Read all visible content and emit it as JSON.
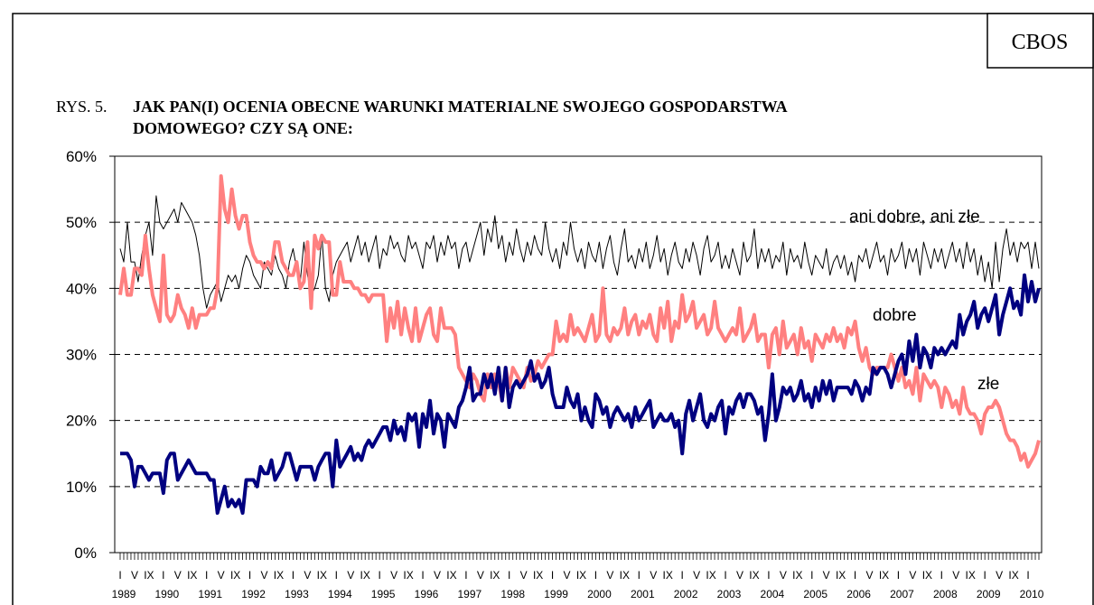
{
  "chart_data": {
    "type": "line",
    "source": "CBOS",
    "figure_label": "RYS. 5.",
    "title": [
      "JAK PAN(I) OCENIA OBECNE WARUNKI MATERIALNE SWOJEGO GOSPODARSTWA",
      "DOMOWEGO? CZY SĄ ONE:"
    ],
    "years": [
      "1989",
      "1990",
      "1991",
      "1992",
      "1993",
      "1994",
      "1995",
      "1996",
      "1997",
      "1998",
      "1999",
      "2000",
      "2001",
      "2002",
      "2003",
      "2004",
      "2005",
      "2006",
      "2007",
      "2008",
      "2009",
      "2010"
    ],
    "categories": [
      "I",
      null,
      null,
      null,
      "V",
      null,
      null,
      null,
      "IX",
      null,
      null,
      null,
      "I",
      null,
      null,
      null,
      "V",
      null,
      null,
      null,
      "IX",
      null,
      null,
      null,
      "I",
      null,
      null,
      null,
      "V",
      null,
      null,
      null,
      "IX",
      null,
      null,
      null,
      "I",
      null,
      null,
      null,
      "V",
      null,
      null,
      null,
      "IX",
      null,
      null,
      null,
      "I",
      null,
      null,
      null,
      "V",
      null,
      null,
      null,
      "IX",
      null,
      null,
      null,
      "I",
      null,
      null,
      null,
      "V",
      null,
      null,
      null,
      "IX",
      null,
      null,
      null,
      "I",
      null,
      null,
      null,
      "V",
      null,
      null,
      null,
      "IX",
      null,
      null,
      null,
      "I",
      null,
      null,
      null,
      "V",
      null,
      null,
      null,
      "IX",
      null,
      null,
      null,
      "I",
      null,
      null,
      null,
      "V",
      null,
      null,
      null,
      "IX",
      null,
      null,
      null,
      "I",
      null,
      null,
      null,
      "V",
      null,
      null,
      null,
      "IX",
      null,
      null,
      null,
      "I",
      null,
      null,
      null,
      "V",
      null,
      null,
      null,
      "IX",
      null,
      null,
      null,
      "I",
      null,
      null,
      null,
      "V",
      null,
      null,
      null,
      "IX",
      null,
      null,
      null,
      "I",
      null,
      null,
      null,
      "V",
      null,
      null,
      null,
      "IX",
      null,
      null,
      null,
      "I",
      null,
      null,
      null,
      "V",
      null,
      null,
      null,
      "IX",
      null,
      null,
      null,
      "I",
      null,
      null,
      null,
      "V",
      null,
      null,
      null,
      "IX",
      null,
      null,
      null,
      "I",
      null,
      null,
      null,
      "V",
      null,
      null,
      null,
      "IX",
      null,
      null,
      null,
      "I",
      null,
      null,
      null,
      "V",
      null,
      null,
      null,
      "IX",
      null,
      null,
      null,
      "I",
      null,
      null,
      null,
      "V",
      null,
      null,
      null,
      "IX",
      null,
      null,
      null,
      "I",
      null,
      null,
      null,
      "V",
      null,
      null,
      null,
      "IX",
      null,
      null,
      null,
      "I",
      null,
      null,
      null,
      "V",
      null,
      null,
      null,
      "IX",
      null,
      null,
      null,
      "I",
      null,
      null,
      null,
      "V",
      null,
      null,
      null,
      "IX",
      null,
      null,
      null,
      "I",
      null,
      null,
      null
    ],
    "series": [
      {
        "name": "dobre",
        "color": "#000080",
        "width": 4,
        "values": [
          15,
          15,
          15,
          14,
          10,
          13,
          13,
          12,
          11,
          12,
          12,
          12,
          9,
          14,
          15,
          15,
          11,
          12,
          13,
          14,
          13,
          12,
          12,
          12,
          12,
          11,
          11,
          6,
          8,
          10,
          7,
          8,
          7,
          8,
          6,
          11,
          11,
          11,
          10,
          13,
          12,
          12,
          14,
          11,
          12,
          13,
          15,
          15,
          13,
          11,
          13,
          13,
          13,
          13,
          11,
          13,
          14,
          15,
          15,
          10,
          17,
          13,
          14,
          15,
          16,
          14,
          15,
          14,
          16,
          17,
          16,
          17,
          18,
          19,
          19,
          17,
          20,
          18,
          19,
          17,
          21,
          20,
          21,
          16,
          21,
          19,
          23,
          18,
          21,
          20,
          16,
          21,
          20,
          19,
          22,
          23,
          25,
          28,
          23,
          24,
          24,
          27,
          25,
          27,
          24,
          28,
          23,
          28,
          22,
          25,
          26,
          25,
          26,
          27,
          29,
          26,
          27,
          25,
          26,
          28,
          24,
          22,
          22,
          22,
          25,
          23,
          22,
          24,
          20,
          22,
          20,
          19,
          24,
          23,
          21,
          22,
          19,
          21,
          22,
          21,
          20,
          21,
          19,
          22,
          20,
          21,
          22,
          23,
          19,
          20,
          21,
          20,
          20,
          21,
          19,
          20,
          15,
          21,
          23,
          20,
          22,
          24,
          20,
          19,
          21,
          20,
          22,
          23,
          18,
          22,
          21,
          23,
          24,
          22,
          24,
          24,
          23,
          21,
          22,
          17,
          21,
          27,
          20,
          22,
          25,
          24,
          25,
          23,
          24,
          26,
          23,
          24,
          22,
          25,
          23,
          26,
          24,
          26,
          23,
          25,
          25,
          25,
          25,
          24,
          26,
          25,
          23,
          25,
          24,
          28,
          27,
          28,
          28,
          27,
          25,
          27,
          29,
          30,
          27,
          32,
          29,
          33,
          28,
          31,
          30,
          28,
          31,
          30,
          31,
          30,
          31,
          32,
          31,
          36,
          33,
          35,
          36,
          38,
          34,
          36,
          37,
          35,
          37,
          39,
          33,
          36,
          38,
          40,
          37,
          38,
          36,
          42,
          38,
          41,
          38,
          40
        ]
      },
      {
        "name": "złe",
        "color": "#ff8080",
        "width": 4,
        "values": [
          39,
          43,
          39,
          39,
          43,
          43,
          42,
          48,
          43,
          39,
          37,
          35,
          45,
          36,
          35,
          36,
          39,
          37,
          36,
          34,
          37,
          34,
          36,
          36,
          36,
          37,
          37,
          40,
          57,
          52,
          50,
          55,
          51,
          49,
          51,
          51,
          47,
          45,
          44,
          44,
          43,
          44,
          43,
          47,
          47,
          44,
          43,
          42,
          42,
          44,
          40,
          41,
          47,
          37,
          48,
          46,
          48,
          47,
          47,
          39,
          39,
          44,
          41,
          41,
          41,
          40,
          40,
          39,
          39,
          38,
          39,
          39,
          39,
          39,
          32,
          37,
          34,
          38,
          33,
          37,
          34,
          32,
          37,
          32,
          34,
          36,
          37,
          33,
          32,
          37,
          34,
          34,
          34,
          33,
          28,
          27,
          26,
          25,
          27,
          26,
          24,
          23,
          27,
          25,
          27,
          26,
          23,
          28,
          25,
          28,
          27,
          26,
          25,
          28,
          26,
          27,
          29,
          28,
          29,
          30,
          30,
          35,
          32,
          33,
          32,
          36,
          33,
          34,
          33,
          32,
          34,
          36,
          32,
          33,
          40,
          33,
          32,
          34,
          33,
          34,
          37,
          33,
          35,
          36,
          33,
          35,
          34,
          36,
          33,
          32,
          37,
          34,
          38,
          32,
          35,
          34,
          39,
          35,
          36,
          38,
          34,
          35,
          36,
          33,
          34,
          38,
          34,
          33,
          32,
          33,
          34,
          33,
          37,
          32,
          33,
          34,
          36,
          32,
          33,
          33,
          28,
          33,
          34,
          30,
          35,
          31,
          32,
          33,
          30,
          34,
          31,
          32,
          29,
          33,
          32,
          31,
          33,
          32,
          34,
          32,
          33,
          31,
          34,
          33,
          35,
          31,
          29,
          31,
          28,
          27,
          28,
          28,
          28,
          28,
          30,
          28,
          26,
          28,
          25,
          26,
          24,
          28,
          23,
          27,
          26,
          25,
          26,
          25,
          22,
          25,
          24,
          22,
          23,
          21,
          25,
          22,
          21,
          21,
          20,
          18,
          21,
          22,
          22,
          23,
          22,
          20,
          18,
          17,
          17,
          16,
          14,
          15,
          13,
          14,
          15,
          17
        ]
      },
      {
        "name": "ani dobre, ani złe",
        "color": "#000000",
        "width": 1,
        "values": [
          46,
          44,
          50,
          44,
          44,
          41,
          45,
          48,
          50,
          45,
          54,
          50,
          49,
          50,
          51,
          52,
          50,
          53,
          52,
          51,
          50,
          48,
          45,
          40,
          37,
          39,
          40,
          41,
          38,
          40,
          42,
          41,
          42,
          40,
          43,
          45,
          44,
          42,
          41,
          40,
          44,
          43,
          42,
          45,
          43,
          42,
          40,
          44,
          46,
          43,
          41,
          47,
          42,
          39,
          40,
          42,
          48,
          40,
          38,
          42,
          44,
          45,
          46,
          47,
          44,
          46,
          48,
          45,
          47,
          44,
          46,
          48,
          43,
          46,
          45,
          48,
          46,
          47,
          45,
          44,
          48,
          46,
          47,
          45,
          43,
          47,
          46,
          48,
          44,
          47,
          45,
          48,
          46,
          47,
          43,
          46,
          47,
          44,
          46,
          48,
          50,
          45,
          49,
          47,
          51,
          46,
          48,
          44,
          47,
          45,
          49,
          46,
          44,
          47,
          45,
          48,
          46,
          45,
          50,
          46,
          44,
          46,
          43,
          47,
          45,
          50,
          46,
          44,
          46,
          43,
          47,
          45,
          44,
          47,
          43,
          46,
          48,
          44,
          42,
          46,
          49,
          44,
          45,
          43,
          46,
          44,
          47,
          43,
          45,
          48,
          44,
          46,
          42,
          45,
          47,
          44,
          43,
          46,
          44,
          47,
          45,
          42,
          46,
          48,
          44,
          45,
          47,
          43,
          45,
          43,
          46,
          44,
          42,
          47,
          44,
          45,
          49,
          43,
          46,
          44,
          46,
          43,
          45,
          44,
          47,
          42,
          46,
          44,
          45,
          43,
          47,
          44,
          42,
          45,
          44,
          43,
          46,
          42,
          44,
          45,
          43,
          45,
          42,
          44,
          41,
          45,
          44,
          46,
          43,
          45,
          47,
          44,
          45,
          42,
          46,
          44,
          45,
          47,
          43,
          46,
          44,
          46,
          42,
          47,
          45,
          43,
          46,
          44,
          46,
          43,
          45,
          47,
          44,
          46,
          43,
          47,
          44,
          46,
          42,
          45,
          41,
          44,
          40,
          47,
          41,
          46,
          49,
          45,
          47,
          44,
          47,
          46,
          47,
          43,
          47,
          43
        ]
      }
    ],
    "ylim": [
      0,
      60
    ],
    "yticks": [
      {
        "value": 0,
        "label": "0%"
      },
      {
        "value": 10,
        "label": "10%"
      },
      {
        "value": 20,
        "label": "20%"
      },
      {
        "value": 30,
        "label": "30%"
      },
      {
        "value": 40,
        "label": "40%"
      },
      {
        "value": 50,
        "label": "50%"
      },
      {
        "value": 60,
        "label": "60%"
      }
    ],
    "grid": true
  }
}
